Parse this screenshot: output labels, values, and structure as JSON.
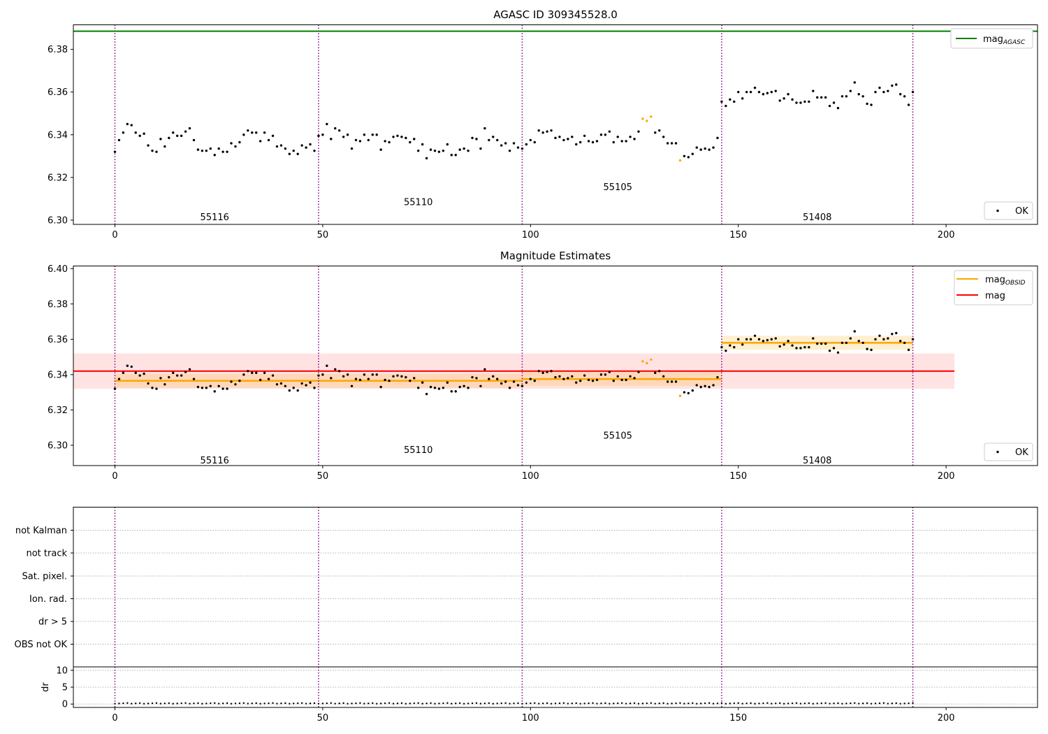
{
  "chart_data": [
    {
      "type": "scatter",
      "title": "AGASC ID 309345528.0",
      "xlabel": "",
      "ylabel": "",
      "xlim": [
        -10,
        222
      ],
      "ylim": [
        6.298,
        6.3915
      ],
      "xticks": [
        0,
        50,
        100,
        150,
        200
      ],
      "yticks": [
        6.3,
        6.32,
        6.34,
        6.36,
        6.38
      ],
      "grid": false,
      "obsid_boundaries": [
        0,
        49,
        98,
        146,
        192
      ],
      "obsid_labels": [
        {
          "label": "55116",
          "x": 24,
          "y": 6.3015
        },
        {
          "label": "55110",
          "x": 73,
          "y": 6.3085
        },
        {
          "label": "55105",
          "x": 121,
          "y": 6.3155
        },
        {
          "label": "51408",
          "x": 169,
          "y": 6.3015
        }
      ],
      "reference_lines": [
        {
          "name": "mag_AGASC",
          "value": 6.3885,
          "color": "#008000"
        }
      ],
      "series": [
        {
          "name": "OK",
          "color": "#000000",
          "x": [
            0,
            1,
            2,
            3,
            4,
            5,
            6,
            7,
            8,
            9,
            10,
            11,
            12,
            13,
            14,
            15,
            16,
            17,
            18,
            19,
            20,
            21,
            22,
            23,
            24,
            25,
            26,
            27,
            28,
            29,
            30,
            31,
            32,
            33,
            34,
            35,
            36,
            37,
            38,
            39,
            40,
            41,
            42,
            43,
            44,
            45,
            46,
            47,
            48,
            49,
            50,
            51,
            52,
            53,
            54,
            55,
            56,
            57,
            58,
            59,
            60,
            61,
            62,
            63,
            64,
            65,
            66,
            67,
            68,
            69,
            70,
            71,
            72,
            73,
            74,
            75,
            76,
            77,
            78,
            79,
            80,
            81,
            82,
            83,
            84,
            85,
            86,
            87,
            88,
            89,
            90,
            91,
            92,
            93,
            94,
            95,
            96,
            97,
            98,
            99,
            100,
            101,
            102,
            103,
            104,
            105,
            106,
            107,
            108,
            109,
            110,
            111,
            112,
            113,
            114,
            115,
            116,
            117,
            118,
            119,
            120,
            121,
            122,
            123,
            124,
            125,
            126,
            130,
            131,
            132,
            133,
            134,
            135,
            137,
            138,
            139,
            140,
            141,
            142,
            143,
            144,
            145,
            146,
            147,
            148,
            149,
            150,
            151,
            152,
            153,
            154,
            155,
            156,
            157,
            158,
            159,
            160,
            161,
            162,
            163,
            164,
            165,
            166,
            167,
            168,
            169,
            170,
            171,
            172,
            173,
            174,
            175,
            176,
            177,
            178,
            179,
            180,
            181,
            182,
            183,
            184,
            185,
            186,
            187,
            188,
            189,
            190,
            191,
            192
          ],
          "y": [
            6.332,
            6.3375,
            6.341,
            6.345,
            6.3445,
            6.341,
            6.3395,
            6.3405,
            6.335,
            6.3325,
            6.332,
            6.338,
            6.3345,
            6.3385,
            6.341,
            6.3395,
            6.3395,
            6.3415,
            6.343,
            6.3375,
            6.333,
            6.3325,
            6.3325,
            6.3335,
            6.3305,
            6.3335,
            6.332,
            6.332,
            6.336,
            6.3345,
            6.3365,
            6.34,
            6.342,
            6.341,
            6.341,
            6.337,
            6.341,
            6.3375,
            6.3395,
            6.3345,
            6.335,
            6.3335,
            6.331,
            6.3325,
            6.331,
            6.335,
            6.334,
            6.3355,
            6.3325,
            6.3395,
            6.34,
            6.345,
            6.338,
            6.343,
            6.342,
            6.339,
            6.34,
            6.3335,
            6.3375,
            6.337,
            6.34,
            6.3375,
            6.34,
            6.34,
            6.333,
            6.337,
            6.3365,
            6.339,
            6.3395,
            6.339,
            6.3385,
            6.3365,
            6.338,
            6.3325,
            6.3355,
            6.329,
            6.333,
            6.3325,
            6.332,
            6.3325,
            6.3355,
            6.3305,
            6.3305,
            6.333,
            6.3335,
            6.3325,
            6.3385,
            6.338,
            6.3335,
            6.343,
            6.3375,
            6.339,
            6.3375,
            6.335,
            6.336,
            6.3325,
            6.336,
            6.334,
            6.3335,
            6.3355,
            6.3375,
            6.3365,
            6.342,
            6.341,
            6.3415,
            6.342,
            6.3385,
            6.339,
            6.3375,
            6.338,
            6.339,
            6.3355,
            6.3365,
            6.3395,
            6.337,
            6.3365,
            6.337,
            6.34,
            6.34,
            6.3415,
            6.3365,
            6.339,
            6.337,
            6.337,
            6.339,
            6.338,
            6.3415,
            6.341,
            6.342,
            6.339,
            6.336,
            6.336,
            6.336,
            6.33,
            6.3295,
            6.331,
            6.334,
            6.333,
            6.3335,
            6.333,
            6.334,
            6.3385,
            6.3555,
            6.3535,
            6.3565,
            6.3555,
            6.36,
            6.357,
            6.36,
            6.36,
            6.362,
            6.36,
            6.359,
            6.3595,
            6.36,
            6.3605,
            6.356,
            6.357,
            6.359,
            6.3565,
            6.355,
            6.355,
            6.3555,
            6.3555,
            6.3605,
            6.3575,
            6.3575,
            6.3575,
            6.3535,
            6.355,
            6.3525,
            6.358,
            6.358,
            6.3605,
            6.3645,
            6.359,
            6.358,
            6.3545,
            6.354,
            6.36,
            6.362,
            6.36,
            6.3605,
            6.363,
            6.3635,
            6.359,
            6.358,
            6.354,
            6.36
          ]
        },
        {
          "name": "not OK",
          "color": "#ffa500",
          "x": [
            127,
            128,
            129,
            136
          ],
          "y": [
            6.3475,
            6.3465,
            6.3485,
            6.328
          ]
        }
      ],
      "legend": [
        {
          "label": "mag",
          "subscript": "AGASC",
          "kind": "line",
          "color": "#008000",
          "placement": "top-right"
        },
        {
          "label": "OK",
          "kind": "marker",
          "color": "#000000",
          "placement": "bottom-right"
        }
      ]
    },
    {
      "type": "scatter",
      "title": "Magnitude Estimates",
      "xlabel": "",
      "ylabel": "",
      "xlim": [
        -10,
        222
      ],
      "ylim": [
        6.2885,
        6.4015
      ],
      "xticks": [
        0,
        50,
        100,
        150,
        200
      ],
      "yticks": [
        6.3,
        6.32,
        6.34,
        6.36,
        6.38,
        6.4
      ],
      "grid": false,
      "obsid_boundaries": [
        0,
        49,
        98,
        146,
        192
      ],
      "obsid_labels": [
        {
          "label": "55116",
          "x": 24,
          "y": 6.2915
        },
        {
          "label": "55110",
          "x": 73,
          "y": 6.2975
        },
        {
          "label": "55105",
          "x": 121,
          "y": 6.3055
        },
        {
          "label": "51408",
          "x": 169,
          "y": 6.2915
        }
      ],
      "mag_line": {
        "name": "mag",
        "value": 6.342,
        "x_range": [
          -10,
          202
        ],
        "band": [
          6.332,
          6.352
        ],
        "color": "#ff0000"
      },
      "obsid_means": [
        {
          "x_range": [
            0,
            49
          ],
          "value": 6.3365
        },
        {
          "x_range": [
            49,
            98
          ],
          "value": 6.3365
        },
        {
          "x_range": [
            98,
            146
          ],
          "value": 6.3375
        },
        {
          "x_range": [
            146,
            192
          ],
          "value": 6.358
        }
      ],
      "legend": [
        {
          "label": "mag",
          "subscript": "OBSID",
          "kind": "line",
          "color": "#ffa500",
          "placement": "top-right"
        },
        {
          "label": "mag",
          "kind": "line",
          "color": "#ff0000",
          "placement": "top-right"
        },
        {
          "label": "OK",
          "kind": "marker",
          "color": "#000000",
          "placement": "bottom-right"
        }
      ]
    },
    {
      "type": "scatter",
      "title": "",
      "xlabel": "",
      "ylabel": "",
      "xlim": [
        -10,
        222
      ],
      "categories": [
        "OBS not OK",
        "dr > 5",
        "Ion. rad.",
        "Sat. pixel.",
        "not track",
        "not Kalman"
      ],
      "grid": true,
      "obsid_boundaries": [
        0,
        49,
        98,
        146,
        192
      ]
    },
    {
      "type": "scatter",
      "title": "",
      "xlabel": "",
      "ylabel": "dr",
      "xlim": [
        -10,
        222
      ],
      "ylim": [
        -1,
        11
      ],
      "xticks": [
        0,
        50,
        100,
        150,
        200
      ],
      "yticks": [
        0,
        5,
        10
      ],
      "grid": true,
      "obsid_boundaries": [
        0,
        49,
        98,
        146,
        192
      ],
      "series": [
        {
          "name": "dr",
          "color": "#000000",
          "x_range": [
            0,
            192
          ],
          "y_level": 0.2,
          "y_jitter": 0.2
        }
      ]
    }
  ]
}
